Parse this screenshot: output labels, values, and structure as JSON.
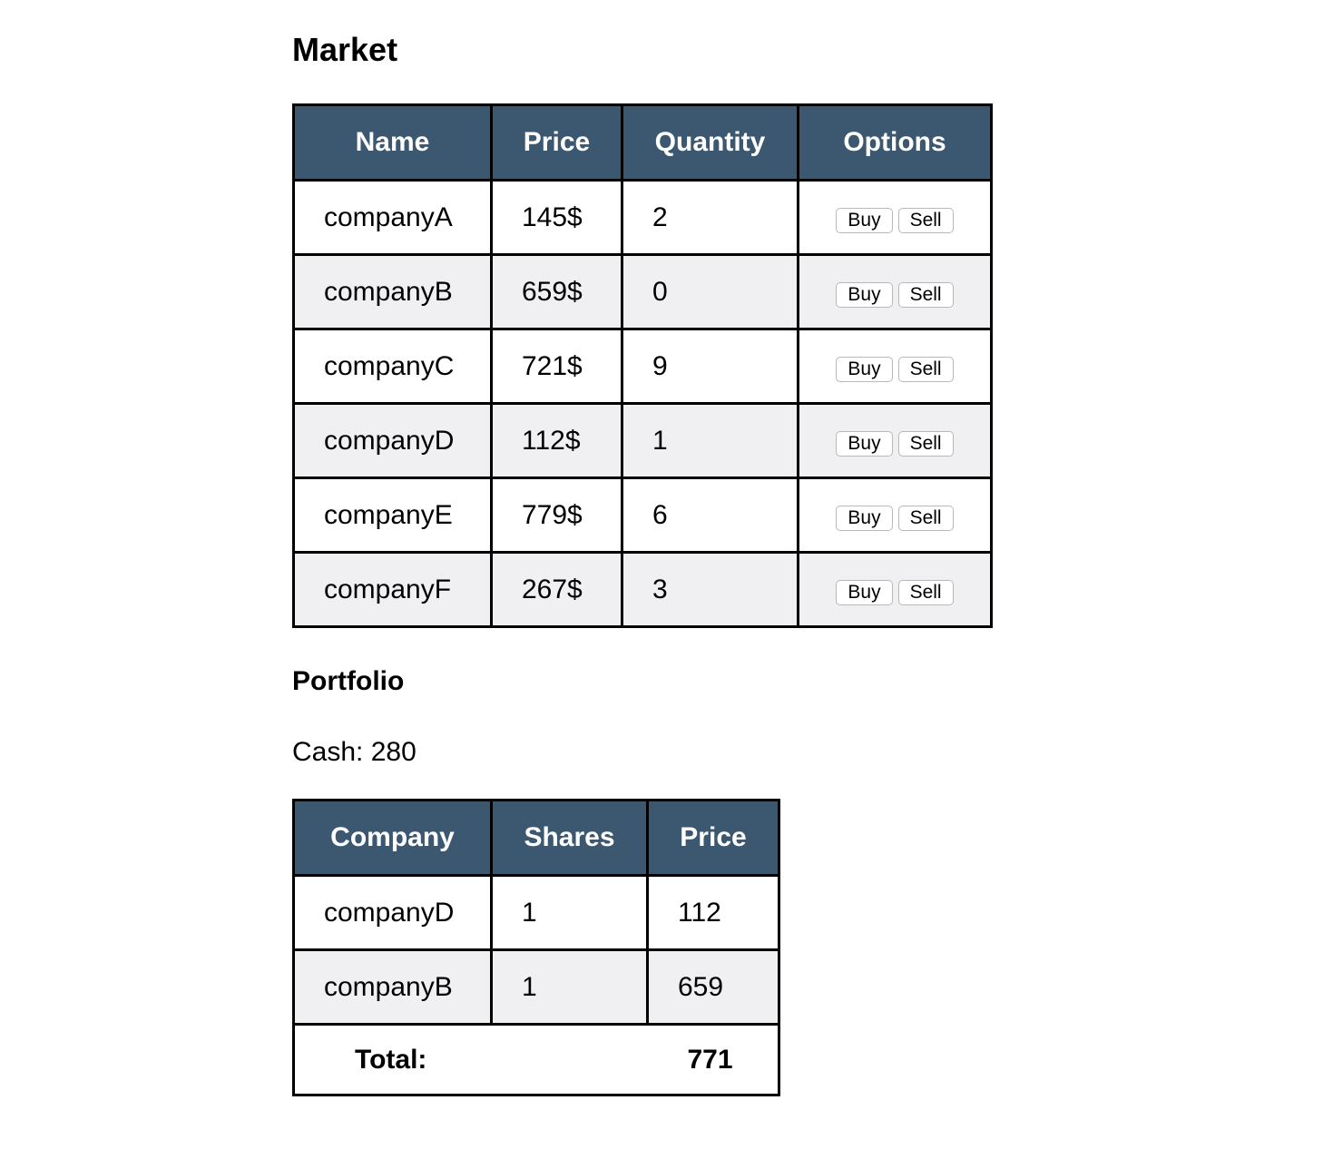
{
  "market": {
    "title": "Market",
    "headers": [
      "Name",
      "Price",
      "Quantity",
      "Options"
    ],
    "rows": [
      {
        "name": "companyA",
        "price": "145$",
        "quantity": "2"
      },
      {
        "name": "companyB",
        "price": "659$",
        "quantity": "0"
      },
      {
        "name": "companyC",
        "price": "721$",
        "quantity": "9"
      },
      {
        "name": "companyD",
        "price": "112$",
        "quantity": "1"
      },
      {
        "name": "companyE",
        "price": "779$",
        "quantity": "6"
      },
      {
        "name": "companyF",
        "price": "267$",
        "quantity": "3"
      }
    ],
    "buy_label": "Buy",
    "sell_label": "Sell"
  },
  "portfolio": {
    "title": "Portfolio",
    "cash_text": "Cash: 280",
    "headers": [
      "Company",
      "Shares",
      "Price"
    ],
    "rows": [
      {
        "company": "companyD",
        "shares": "1",
        "price": "112"
      },
      {
        "company": "companyB",
        "shares": "1",
        "price": "659"
      }
    ],
    "total_label": "Total:",
    "total_value": "771"
  },
  "colors": {
    "header_bg": "#3c5870",
    "header_text": "#ffffff",
    "row_alt_bg": "#f0f0f2",
    "border": "#000000"
  }
}
